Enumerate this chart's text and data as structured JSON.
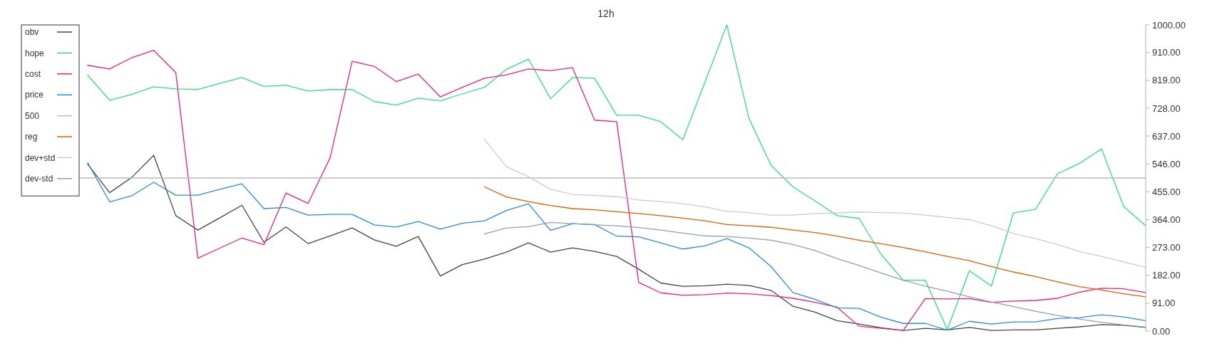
{
  "chart_data": {
    "type": "line",
    "title": "12h",
    "categories": [
      null,
      null,
      null,
      null,
      null,
      null,
      null,
      null,
      null,
      null,
      null,
      null,
      null,
      null,
      null,
      null,
      null,
      null,
      null,
      null,
      null,
      null,
      null,
      null,
      null,
      null,
      null,
      null,
      null,
      null,
      null,
      null,
      null,
      null,
      null,
      null,
      null,
      null,
      null,
      null,
      null,
      null,
      null,
      null,
      null,
      null,
      null,
      null,
      null,
      null
    ],
    "series": [
      {
        "name": "obv",
        "color": "#444444",
        "values": [
          null,
          545,
          452,
          502,
          574,
          377,
          330,
          370,
          411,
          290,
          340,
          286,
          311,
          337,
          298,
          277,
          309,
          180,
          217,
          235,
          258,
          288,
          258,
          272,
          260,
          244,
          202,
          157,
          146,
          148,
          153,
          149,
          133,
          81,
          62,
          34,
          23,
          11,
          2,
          9,
          4,
          12,
          2,
          4,
          4,
          9,
          14,
          21,
          19,
          12
        ]
      },
      {
        "name": "hope",
        "color": "#2ee07a",
        "values": [
          null,
          836,
          754,
          773,
          798,
          791,
          789,
          809,
          828,
          799,
          803,
          784,
          789,
          789,
          750,
          738,
          761,
          752,
          775,
          796,
          855,
          888,
          759,
          828,
          826,
          705,
          705,
          684,
          625,
          812,
          1000,
          695,
          542,
          471,
          425,
          377,
          368,
          250,
          166,
          166,
          5,
          197,
          147,
          386,
          398,
          514,
          548,
          595,
          407,
          344
        ]
      },
      {
        "name": "cost",
        "color": "#e8207f",
        "values": [
          null,
          868,
          856,
          893,
          917,
          844,
          238,
          271,
          304,
          282,
          451,
          417,
          566,
          881,
          865,
          815,
          839,
          765,
          796,
          826,
          837,
          856,
          851,
          860,
          689,
          684,
          159,
          125,
          117,
          119,
          124,
          122,
          116,
          107,
          94,
          78,
          16,
          9,
          2,
          106,
          105,
          106,
          94,
          98,
          100,
          107,
          127,
          140,
          138,
          126
        ]
      },
      {
        "name": "price",
        "color": "#2a8ae0",
        "values": [
          null,
          550,
          422,
          442,
          486,
          444,
          444,
          463,
          481,
          400,
          404,
          379,
          381,
          381,
          347,
          340,
          358,
          333,
          352,
          360,
          394,
          416,
          329,
          351,
          348,
          310,
          308,
          288,
          268,
          278,
          302,
          272,
          211,
          126,
          104,
          76,
          74,
          45,
          25,
          25,
          3,
          32,
          23,
          30,
          30,
          41,
          44,
          53,
          46,
          34
        ]
      },
      {
        "name": "500",
        "color": "#bbbbbb",
        "values": [
          500,
          500,
          500,
          500,
          500,
          500,
          500,
          500,
          500,
          500,
          500,
          500,
          500,
          500,
          500,
          500,
          500,
          500,
          500,
          500,
          500,
          500,
          500,
          500,
          500,
          500,
          500,
          500,
          500,
          500,
          500,
          500,
          500,
          500,
          500,
          500,
          500,
          500,
          500,
          500,
          500,
          500,
          500,
          500,
          500,
          500,
          500,
          500,
          500,
          500
        ]
      },
      {
        "name": "reg",
        "color": "#d95f00",
        "values": [
          null,
          null,
          null,
          null,
          null,
          null,
          null,
          null,
          null,
          null,
          null,
          null,
          null,
          null,
          null,
          null,
          null,
          null,
          null,
          471,
          438,
          423,
          410,
          400,
          396,
          390,
          384,
          377,
          369,
          360,
          348,
          344,
          339,
          330,
          322,
          310,
          297,
          285,
          273,
          259,
          244,
          230,
          211,
          193,
          178,
          161,
          145,
          134,
          122,
          112
        ]
      },
      {
        "name": "dev+std",
        "color": "#c5ccd2",
        "values": [
          null,
          null,
          null,
          null,
          null,
          null,
          null,
          null,
          null,
          null,
          null,
          null,
          null,
          null,
          null,
          null,
          null,
          null,
          null,
          627,
          537,
          504,
          463,
          446,
          443,
          439,
          428,
          423,
          416,
          406,
          391,
          387,
          379,
          379,
          384,
          386,
          389,
          387,
          385,
          379,
          371,
          364,
          344,
          319,
          302,
          283,
          260,
          244,
          226,
          208
        ]
      },
      {
        "name": "dev-std",
        "color": "#8fa0ab",
        "values": [
          null,
          null,
          null,
          null,
          null,
          null,
          null,
          null,
          null,
          null,
          null,
          null,
          null,
          null,
          null,
          null,
          null,
          null,
          null,
          317,
          337,
          341,
          355,
          351,
          347,
          344,
          338,
          330,
          320,
          311,
          309,
          304,
          297,
          283,
          263,
          237,
          214,
          190,
          166,
          147,
          130,
          112,
          95,
          80,
          65,
          51,
          39,
          29,
          20,
          13
        ]
      }
    ],
    "ylim": [
      0,
      1000
    ],
    "yticks": [
      {
        "value": 0,
        "label": "0.00"
      },
      {
        "value": 91,
        "label": "91.00"
      },
      {
        "value": 182,
        "label": "182.00"
      },
      {
        "value": 273,
        "label": "273.00"
      },
      {
        "value": 364,
        "label": "364.00"
      },
      {
        "value": 455,
        "label": "455.00"
      },
      {
        "value": 546,
        "label": "546.00"
      },
      {
        "value": 637,
        "label": "637.00"
      },
      {
        "value": 728,
        "label": "728.00"
      },
      {
        "value": 819,
        "label": "819.00"
      },
      {
        "value": 910,
        "label": "910.00"
      },
      {
        "value": 1000,
        "label": "1000.00"
      }
    ],
    "tick_labels": "y",
    "legend": "top left",
    "grid": false
  }
}
